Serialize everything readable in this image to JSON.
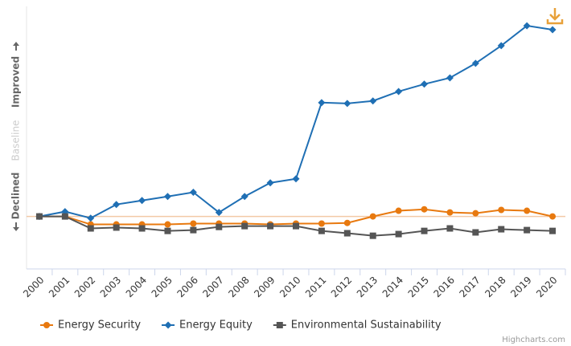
{
  "chart_data": {
    "type": "line",
    "categories": [
      "2000",
      "2001",
      "2002",
      "2003",
      "2004",
      "2005",
      "2006",
      "2007",
      "2008",
      "2009",
      "2010",
      "2011",
      "2012",
      "2013",
      "2014",
      "2015",
      "2016",
      "2017",
      "2018",
      "2019",
      "2020"
    ],
    "series": [
      {
        "name": "Energy Security",
        "color": "#e8790f",
        "marker": "circle",
        "values": [
          0,
          0,
          -3.8,
          -3.8,
          -3.8,
          -3.8,
          -3.4,
          -3.4,
          -3.4,
          -3.8,
          -3.4,
          -3.4,
          -3.1,
          0,
          2.7,
          3.4,
          1.9,
          1.5,
          3.1,
          2.7,
          0
        ]
      },
      {
        "name": "Energy Equity",
        "color": "#1f6fb4",
        "marker": "diamond",
        "values": [
          0,
          2.3,
          -0.8,
          5.7,
          7.6,
          9.5,
          11.5,
          1.9,
          9.5,
          16,
          17.9,
          54.2,
          53.8,
          55,
          59.5,
          63,
          66,
          72.9,
          81.3,
          90.8,
          88.9
        ]
      },
      {
        "name": "Environmental Sustainability",
        "color": "#555555",
        "marker": "square",
        "values": [
          0,
          0,
          -5.7,
          -5.3,
          -5.7,
          -6.9,
          -6.5,
          -5,
          -4.6,
          -4.6,
          -4.6,
          -6.9,
          -8,
          -9.2,
          -8.4,
          -6.9,
          -5.7,
          -7.6,
          -6.1,
          -6.5,
          -6.9
        ]
      }
    ],
    "ylim": [
      -25,
      100
    ],
    "plot_line": 0,
    "y_axis_labels": [
      "Declined",
      "Baseline",
      "Improved"
    ],
    "credits": "Highcharts.com"
  }
}
